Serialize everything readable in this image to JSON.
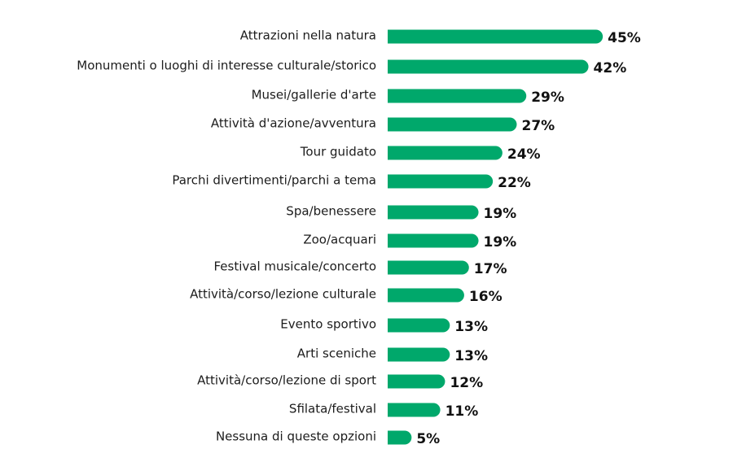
{
  "chart_data": {
    "type": "bar",
    "orientation": "horizontal",
    "title": "",
    "xlabel": "",
    "ylabel": "",
    "value_suffix": "%",
    "categories": [
      "Attrazioni nella natura",
      "Monumenti o luoghi di interesse culturale/storico",
      "Musei/gallerie d'arte",
      "Attività d'azione/avventura",
      "Tour guidato",
      "Parchi divertimenti/parchi a tema",
      "Spa/benessere",
      "Zoo/acquari",
      "Festival musicale/concerto",
      "Attività/corso/lezione culturale",
      "Evento sportivo",
      "Arti sceniche",
      "Attività/corso/lezione di sport",
      "Sfilata/festival",
      "Nessuna di queste opzioni"
    ],
    "values": [
      45,
      42,
      29,
      27,
      24,
      22,
      19,
      19,
      17,
      16,
      13,
      13,
      12,
      11,
      5
    ],
    "bar_color": "#00a86b",
    "grid": false,
    "legend": "none"
  }
}
